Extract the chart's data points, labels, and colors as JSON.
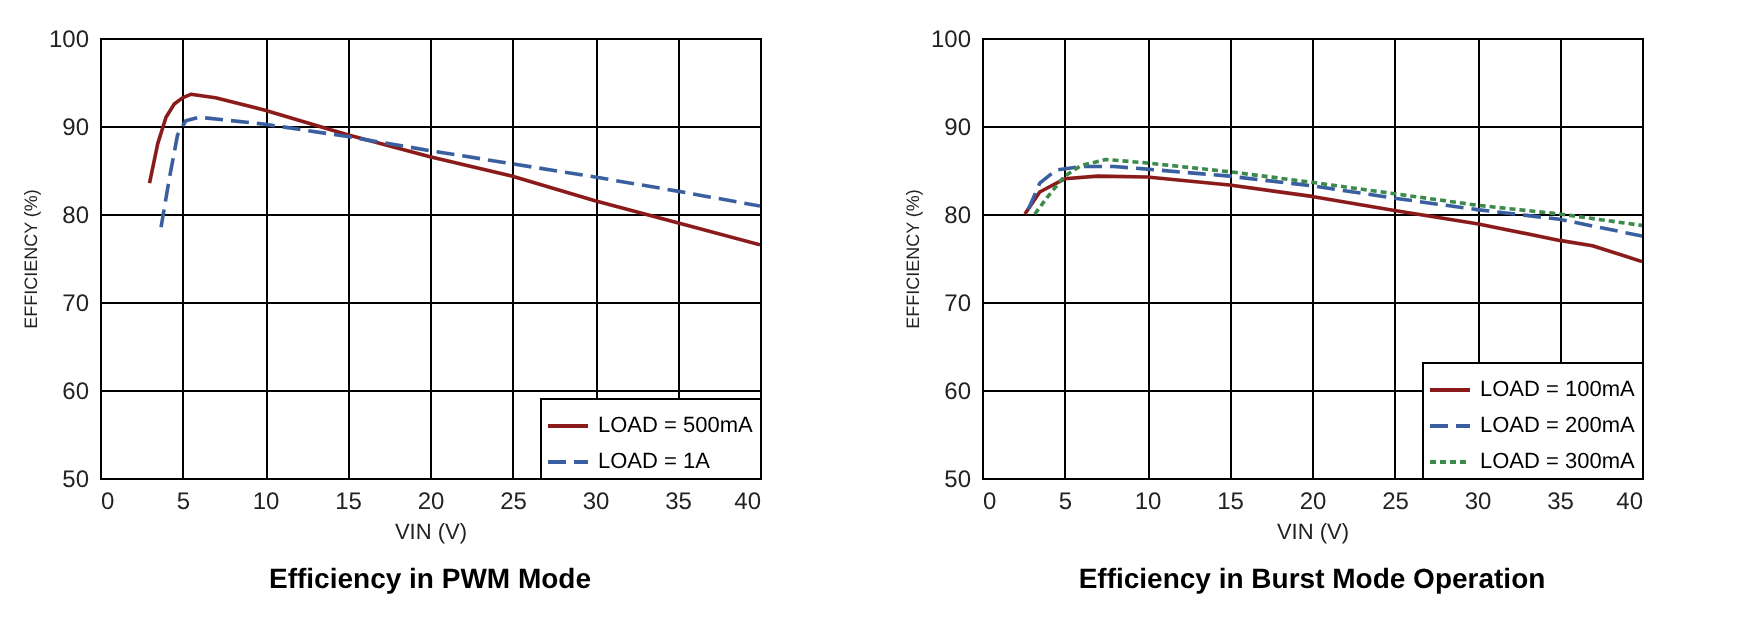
{
  "chart_data": [
    {
      "type": "line",
      "title": "Efficiency in PWM Mode",
      "xlabel": "VIN (V)",
      "ylabel": "EFFICIENCY (%)",
      "xlim": [
        0,
        40
      ],
      "xticks": [
        0,
        5,
        10,
        15,
        20,
        25,
        30,
        35,
        40
      ],
      "ylim": [
        50,
        100
      ],
      "yticks": [
        50,
        60,
        70,
        80,
        90,
        100
      ],
      "grid": true,
      "legend": "bottom right",
      "marker": "none",
      "series": [
        {
          "name": "LOAD = 500mA",
          "color": "#8b1a1a",
          "line_style": "solid",
          "x": [
            3,
            3.5,
            4,
            4.5,
            5,
            5.5,
            7,
            10,
            15,
            20,
            25,
            30,
            35,
            40
          ],
          "values": [
            83.5,
            88,
            91,
            92.5,
            93.2,
            93.6,
            93.2,
            91.8,
            89,
            86.5,
            84.3,
            81.5,
            79,
            76.5
          ]
        },
        {
          "name": "LOAD = 1A",
          "color": "#3a5fa0",
          "line_style": "dashed",
          "x": [
            3.7,
            4.2,
            4.7,
            5.2,
            6,
            10,
            15,
            20,
            25,
            30,
            35,
            40
          ],
          "values": [
            78.5,
            84,
            89,
            90.6,
            91,
            90.2,
            88.8,
            87.2,
            85.7,
            84.2,
            82.6,
            80.9
          ]
        }
      ]
    },
    {
      "type": "line",
      "title": "Efficiency in Burst Mode Operation",
      "xlabel": "VIN (V)",
      "ylabel": "EFFICIENCY (%)",
      "xlim": [
        0,
        40
      ],
      "xticks": [
        0,
        5,
        10,
        15,
        20,
        25,
        30,
        35,
        40
      ],
      "ylim": [
        50,
        100
      ],
      "yticks": [
        50,
        60,
        70,
        80,
        90,
        100
      ],
      "grid": true,
      "legend": "bottom right",
      "marker": "none",
      "series": [
        {
          "name": "LOAD = 100mA",
          "color": "#8b1a1a",
          "line_style": "solid",
          "x": [
            2.6,
            3.5,
            5,
            7,
            10,
            15,
            20,
            25,
            30,
            35,
            37,
            40
          ],
          "values": [
            80,
            82.5,
            84,
            84.3,
            84.2,
            83.3,
            82,
            80.4,
            78.9,
            77,
            76.4,
            74.6
          ]
        },
        {
          "name": "LOAD = 200mA",
          "color": "#3a5fa0",
          "line_style": "dashed",
          "x": [
            2.8,
            3.5,
            4.5,
            6,
            8,
            10,
            15,
            20,
            25,
            30,
            35,
            40
          ],
          "values": [
            80.5,
            83.5,
            85,
            85.4,
            85.4,
            85.1,
            84.3,
            83.2,
            81.8,
            80.5,
            79.4,
            77.5
          ]
        },
        {
          "name": "LOAD = 300mA",
          "color": "#3a8a4a",
          "line_style": "dotted",
          "x": [
            3.2,
            4,
            5,
            6,
            7.5,
            10,
            15,
            20,
            25,
            30,
            35,
            40
          ],
          "values": [
            80,
            82,
            84.3,
            85.5,
            86.2,
            85.8,
            84.8,
            83.6,
            82.3,
            81,
            80,
            78.7
          ]
        }
      ]
    }
  ]
}
